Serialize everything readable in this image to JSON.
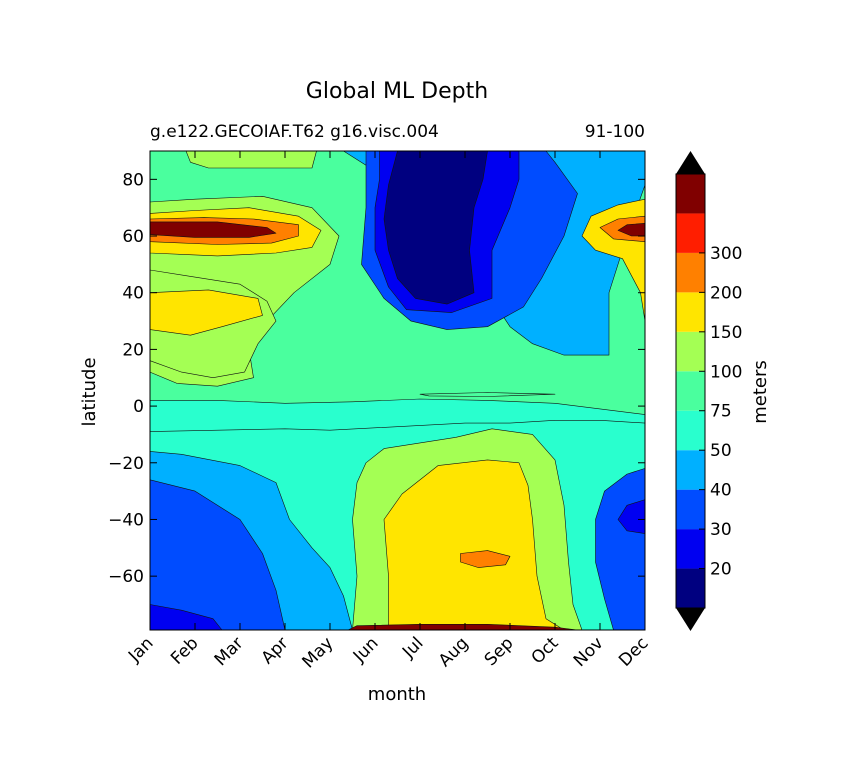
{
  "chart_data": {
    "type": "contour",
    "title": "Global ML Depth",
    "subtitle_left": "g.e122.GECOIAF.T62 g16.visc.004",
    "subtitle_right": "91-100",
    "xlabel": "month",
    "ylabel": "latitude",
    "months": [
      "Jan",
      "Feb",
      "Mar",
      "Apr",
      "May",
      "Jun",
      "Jul",
      "Aug",
      "Sep",
      "Oct",
      "Nov",
      "Dec"
    ],
    "xlim": [
      0,
      11
    ],
    "ylim": [
      -79,
      90
    ],
    "yticks": [
      80,
      60,
      40,
      20,
      0,
      -20,
      -40,
      -60
    ],
    "colorbar": {
      "label": "meters",
      "extend": "both",
      "levels": [
        10,
        20,
        30,
        40,
        50,
        75,
        100,
        150,
        200,
        300,
        400
      ],
      "tick_labels": [
        "20",
        "30",
        "40",
        "50",
        "75",
        "100",
        "150",
        "200",
        "300"
      ],
      "colors": [
        "#000080",
        "#0000f1",
        "#004cff",
        "#00b0ff",
        "#29ffce",
        "#4aff9e",
        "#a4ff54",
        "#ffe500",
        "#ff8000",
        "#ff1e00",
        "#800000"
      ]
    },
    "regions": [
      {
        "name": "southern-band",
        "band": 4
      },
      {
        "name": "south-subtropics",
        "band": 3
      },
      {
        "name": "antarctic-winter-deep",
        "band": 6
      },
      {
        "name": "antarctic-winter-core",
        "band": 7
      },
      {
        "name": "antarctic-max",
        "band": 8
      },
      {
        "name": "southern-coast-max",
        "band": 10
      },
      {
        "name": "south-summer-shallow",
        "band": 2
      },
      {
        "name": "south-summer-core",
        "band": 1
      },
      {
        "name": "south-summer-dec-shallow",
        "band": 2
      },
      {
        "name": "south-summer-dec-core",
        "band": 1
      },
      {
        "name": "north-subpolar",
        "band": 5
      },
      {
        "name": "north-high-green",
        "band": 6
      },
      {
        "name": "north-winter-deep",
        "band": 7
      },
      {
        "name": "north-winter-max",
        "band": 8
      },
      {
        "name": "north-winter-core",
        "band": 10
      },
      {
        "name": "north-subtropics-winter",
        "band": 6
      },
      {
        "name": "north-subtropics-core",
        "band": 7
      },
      {
        "name": "north-summer-shallow",
        "band": 3
      },
      {
        "name": "north-summer-mid",
        "band": 2
      },
      {
        "name": "north-summer-core",
        "band": 1
      },
      {
        "name": "north-summer-innermost",
        "band": 0
      },
      {
        "name": "arctic-green",
        "band": 6
      },
      {
        "name": "dec-north-deep",
        "band": 7
      },
      {
        "name": "dec-north-max",
        "band": 8
      },
      {
        "name": "dec-north-core",
        "band": 10
      },
      {
        "name": "equator-green",
        "band": 5
      }
    ]
  }
}
